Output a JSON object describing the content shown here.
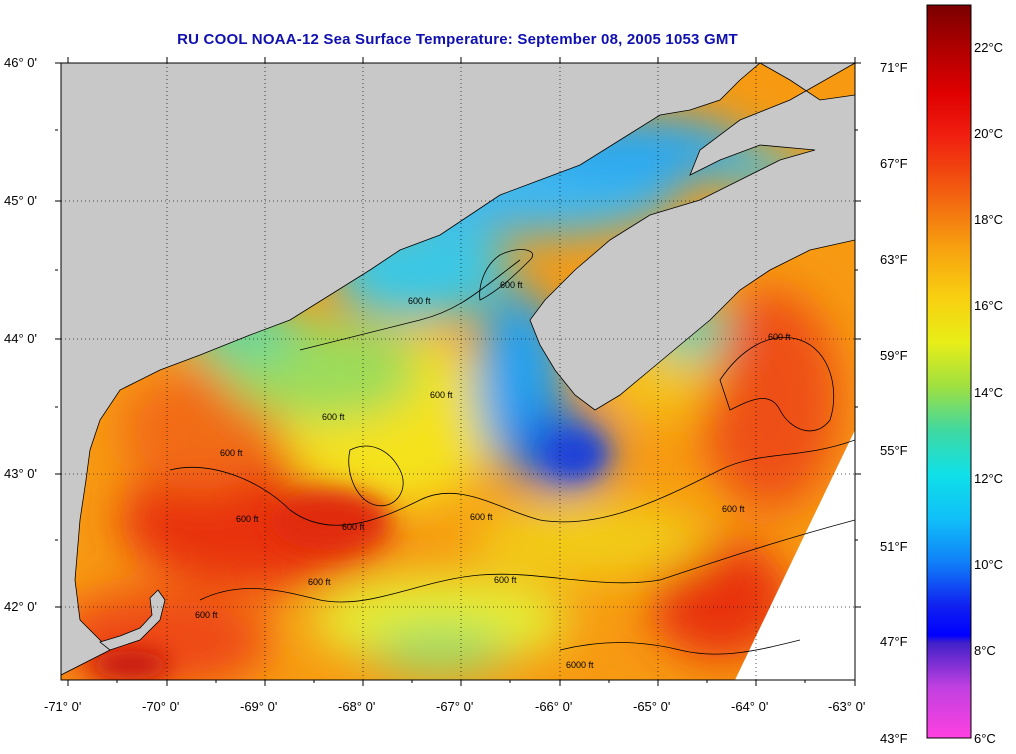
{
  "title": "RU COOL  NOAA-12  Sea Surface Temperature:  September 08, 2005 1053 GMT",
  "latitude_labels": [
    "46° 0'",
    "45° 0'",
    "44° 0'",
    "43° 0'",
    "42° 0'"
  ],
  "longitude_labels": [
    "-71° 0'",
    "-70° 0'",
    "-69° 0'",
    "-68° 0'",
    "-67° 0'",
    "-66° 0'",
    "-65° 0'",
    "-64° 0'",
    "-63° 0'"
  ],
  "contour_label": "600 ft",
  "contour_label_deep": "6000 ft",
  "colorbar": {
    "fahrenheit_labels": [
      "71°F",
      "67°F",
      "63°F",
      "59°F",
      "55°F",
      "51°F",
      "47°F",
      "43°F"
    ],
    "celsius_labels": [
      "22°C",
      "20°C",
      "18°C",
      "16°C",
      "14°C",
      "12°C",
      "10°C",
      "8°C",
      "6°C"
    ]
  },
  "colors": {
    "title": "#1010b0",
    "land": "#c8c8c8",
    "no_data": "#ffffff"
  }
}
